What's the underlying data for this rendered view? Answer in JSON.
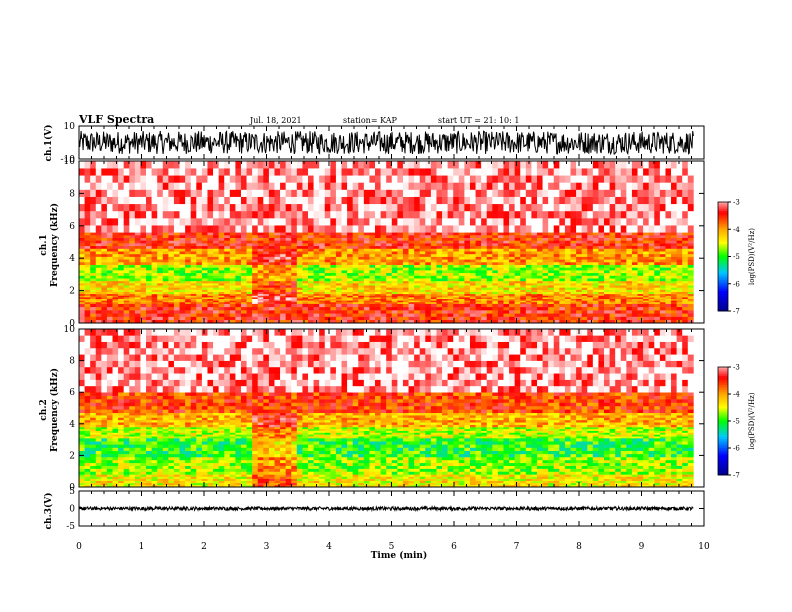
{
  "header": {
    "title": "VLF Spectra",
    "date": "Jul. 18, 2021",
    "station": "station= KAP",
    "start": "start UT =  21: 10: 1"
  },
  "colors": {
    "spectrum_scale": [
      "#00008b",
      "#0000ff",
      "#00c8ff",
      "#00ff00",
      "#ffff00",
      "#ffa500",
      "#ff0000",
      "#ffffff"
    ]
  },
  "chart_data": [
    {
      "id": "ch1-waveform",
      "type": "line",
      "ylabel": "ch.1(V)",
      "ylim": [
        -10,
        10
      ],
      "yticks": [
        "10",
        "-10"
      ],
      "xlim": [
        0,
        10
      ],
      "data_extent_min": 9.83,
      "amplitude_range": [
        -7,
        7
      ]
    },
    {
      "id": "ch1-spectrogram",
      "type": "heatmap",
      "ylabel": "ch.1\nFrequency (kHz)",
      "ylim": [
        0,
        10
      ],
      "yticks": [
        "0",
        "2",
        "4",
        "6",
        "8",
        "10"
      ],
      "xlim": [
        0,
        10
      ],
      "data_extent_min": 9.83,
      "colorbar": {
        "label": "log(PSD)(V²/Hz)",
        "range": [
          -7,
          -3
        ],
        "ticks": [
          "-3",
          "-4",
          "-5",
          "-6",
          "-7"
        ]
      },
      "bands_khz": [
        {
          "from": 0,
          "to": 1.2,
          "level": -3.5
        },
        {
          "from": 1.2,
          "to": 1.8,
          "level": -3.9
        },
        {
          "from": 1.8,
          "to": 2.6,
          "level": -4.3
        },
        {
          "from": 2.6,
          "to": 3.6,
          "level": -4.7
        },
        {
          "from": 3.6,
          "to": 4.6,
          "level": -4.0
        },
        {
          "from": 4.6,
          "to": 5.6,
          "level": -3.5
        },
        {
          "from": 5.6,
          "to": 10,
          "level": -3.0
        }
      ],
      "quiet_interval_min": [
        2.8,
        3.5
      ]
    },
    {
      "id": "ch2-spectrogram",
      "type": "heatmap",
      "ylabel": "ch.2\nFrequency (kHz)",
      "ylim": [
        0,
        10
      ],
      "yticks": [
        "0",
        "2",
        "4",
        "6",
        "8",
        "10"
      ],
      "xlim": [
        0,
        10
      ],
      "data_extent_min": 9.83,
      "colorbar": {
        "label": "log(PSD)(V²/Hz)",
        "range": [
          -7,
          -3
        ],
        "ticks": [
          "-3",
          "-4",
          "-5",
          "-6",
          "-7"
        ]
      },
      "bands_khz": [
        {
          "from": 0,
          "to": 0.8,
          "level": -4.4
        },
        {
          "from": 0.8,
          "to": 1.9,
          "level": -4.7
        },
        {
          "from": 1.9,
          "to": 3.1,
          "level": -5.0
        },
        {
          "from": 3.1,
          "to": 3.8,
          "level": -4.6
        },
        {
          "from": 3.8,
          "to": 4.7,
          "level": -4.1
        },
        {
          "from": 4.7,
          "to": 6.0,
          "level": -3.6
        },
        {
          "from": 6.0,
          "to": 10,
          "level": -3.0
        }
      ],
      "quiet_interval_min": [
        2.8,
        3.5
      ]
    },
    {
      "id": "ch3-waveform",
      "type": "line",
      "ylabel": "ch.3(V)",
      "ylim": [
        -5,
        5
      ],
      "yticks": [
        "5",
        "0",
        "-5"
      ],
      "xlim": [
        0,
        10
      ],
      "data_extent_min": 9.83,
      "amplitude_range": [
        -0.5,
        0.5
      ],
      "xlabel": "Time (min)",
      "xticks": [
        "0",
        "1",
        "2",
        "3",
        "4",
        "5",
        "6",
        "7",
        "8",
        "9",
        "10"
      ]
    }
  ]
}
